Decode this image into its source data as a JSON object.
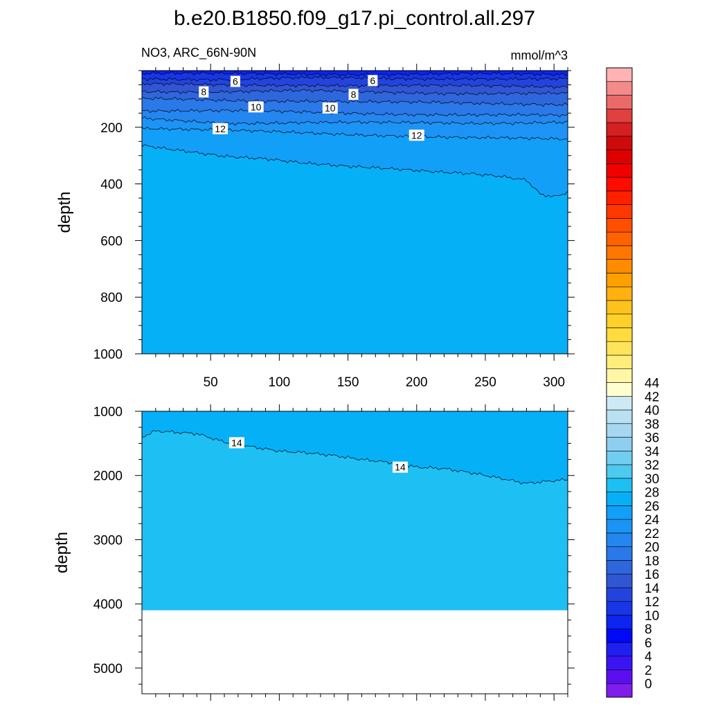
{
  "figure": {
    "title": "b.e20.B1850.f09_g17.pi_control.all.297",
    "variable_label": "NO3, ARC_66N-90N",
    "units_label": "mmol/m^3"
  },
  "colorbar": {
    "tick_labels": [
      "0",
      "2",
      "4",
      "6",
      "8",
      "10",
      "12",
      "14",
      "16",
      "18",
      "20",
      "22",
      "24",
      "26",
      "28",
      "30",
      "32",
      "34",
      "36",
      "38",
      "40",
      "42",
      "44"
    ],
    "colors": [
      "#7f1ded",
      "#5b0ff0",
      "#3a14f5",
      "#1f1ff0",
      "#0008f7",
      "#0b24f0",
      "#1835e6",
      "#2344dc",
      "#3156d4",
      "#2e66dc",
      "#2b78e8",
      "#2487f0",
      "#1c94f5",
      "#129ff8",
      "#06b0f6",
      "#1ec0f3",
      "#4ec9f0",
      "#72cef0",
      "#8ecff0",
      "#a5d8f0",
      "#b9e1f1",
      "#cde9f4",
      "#ffffd0",
      "#fff7a6",
      "#ffee7c",
      "#ffe45a",
      "#ffdc3c",
      "#ffd02a",
      "#ffc11c",
      "#ffb10f",
      "#ffa000",
      "#ff8c00",
      "#ff7600",
      "#ff6300",
      "#ff4e00",
      "#ff3700",
      "#ff2000",
      "#ff0c00",
      "#f20000",
      "#de0000",
      "#cf0a0a",
      "#d42020",
      "#e04040",
      "#ea6a6a",
      "#f48a8a",
      "#ffb3b3"
    ]
  },
  "chart_data": [
    {
      "type": "heatmap",
      "panel": "upper",
      "title": "b.e20.B1850.f09_g17.pi_control.all.297",
      "left_label": "NO3, ARC_66N-90N",
      "right_label": "mmol/m^3",
      "xlabel": "",
      "ylabel": "depth",
      "xlim": [
        0,
        310
      ],
      "ylim": [
        1000,
        0
      ],
      "y_reversed": true,
      "x_ticks": [
        50,
        100,
        150,
        200,
        250,
        300
      ],
      "y_ticks": [
        200,
        400,
        600,
        800,
        1000
      ],
      "fill_below_last": 14,
      "contours": [
        {
          "level": 5,
          "x": [
            0,
            60,
            120,
            180,
            240,
            310
          ],
          "y": [
            10,
            12,
            11,
            13,
            12,
            14
          ]
        },
        {
          "level": 6,
          "x": [
            0,
            60,
            120,
            180,
            240,
            310
          ],
          "y": [
            28,
            30,
            26,
            29,
            27,
            30
          ]
        },
        {
          "level": 7,
          "x": [
            0,
            60,
            120,
            180,
            240,
            310
          ],
          "y": [
            48,
            52,
            50,
            53,
            55,
            56
          ]
        },
        {
          "level": 8,
          "x": [
            0,
            60,
            120,
            180,
            240,
            310
          ],
          "y": [
            72,
            75,
            72,
            76,
            80,
            82
          ]
        },
        {
          "level": 9,
          "x": [
            0,
            60,
            120,
            180,
            240,
            310
          ],
          "y": [
            100,
            105,
            106,
            112,
            116,
            118
          ]
        },
        {
          "level": 10,
          "x": [
            0,
            60,
            120,
            180,
            240,
            310
          ],
          "y": [
            140,
            142,
            148,
            152,
            156,
            160
          ]
        },
        {
          "level": 11,
          "x": [
            0,
            60,
            120,
            180,
            240,
            310
          ],
          "y": [
            170,
            185,
            182,
            185,
            186,
            180
          ]
        },
        {
          "level": 12,
          "x": [
            0,
            60,
            120,
            180,
            240,
            310
          ],
          "y": [
            203,
            212,
            220,
            228,
            238,
            243
          ]
        },
        {
          "level": 13,
          "x": [
            0,
            30,
            60,
            90,
            120,
            150,
            180,
            210,
            240,
            260,
            280,
            290,
            300,
            310
          ],
          "y": [
            265,
            282,
            300,
            310,
            328,
            340,
            348,
            356,
            362,
            370,
            385,
            435,
            445,
            430
          ]
        }
      ],
      "contour_labels": [
        {
          "text": "6",
          "x": 68,
          "y": 38
        },
        {
          "text": "6",
          "x": 168,
          "y": 35
        },
        {
          "text": "8",
          "x": 45,
          "y": 75
        },
        {
          "text": "8",
          "x": 154,
          "y": 84
        },
        {
          "text": "10",
          "x": 83,
          "y": 128
        },
        {
          "text": "10",
          "x": 137,
          "y": 132
        },
        {
          "text": "12",
          "x": 57,
          "y": 205
        },
        {
          "text": "12",
          "x": 200,
          "y": 228
        }
      ]
    },
    {
      "type": "heatmap",
      "panel": "lower",
      "xlabel": "",
      "ylabel": "depth",
      "xlim": [
        0,
        310
      ],
      "ylim": [
        5400,
        1000
      ],
      "y_reversed": true,
      "y_ticks": [
        1000,
        2000,
        3000,
        4000,
        5000
      ],
      "fill_below_last": 15,
      "data_bottom_depth": 4100,
      "contours": [
        {
          "level": 14,
          "x": [
            0,
            10,
            40,
            60,
            80,
            100,
            120,
            140,
            160,
            180,
            200,
            220,
            240,
            260,
            280,
            300,
            310
          ],
          "y": [
            1400,
            1310,
            1360,
            1490,
            1560,
            1620,
            1640,
            1680,
            1740,
            1790,
            1870,
            1900,
            1970,
            2050,
            2130,
            2080,
            2060
          ]
        }
      ],
      "contour_labels": [
        {
          "text": "14",
          "x": 69,
          "y": 1490
        },
        {
          "text": "14",
          "x": 188,
          "y": 1870
        }
      ]
    }
  ]
}
